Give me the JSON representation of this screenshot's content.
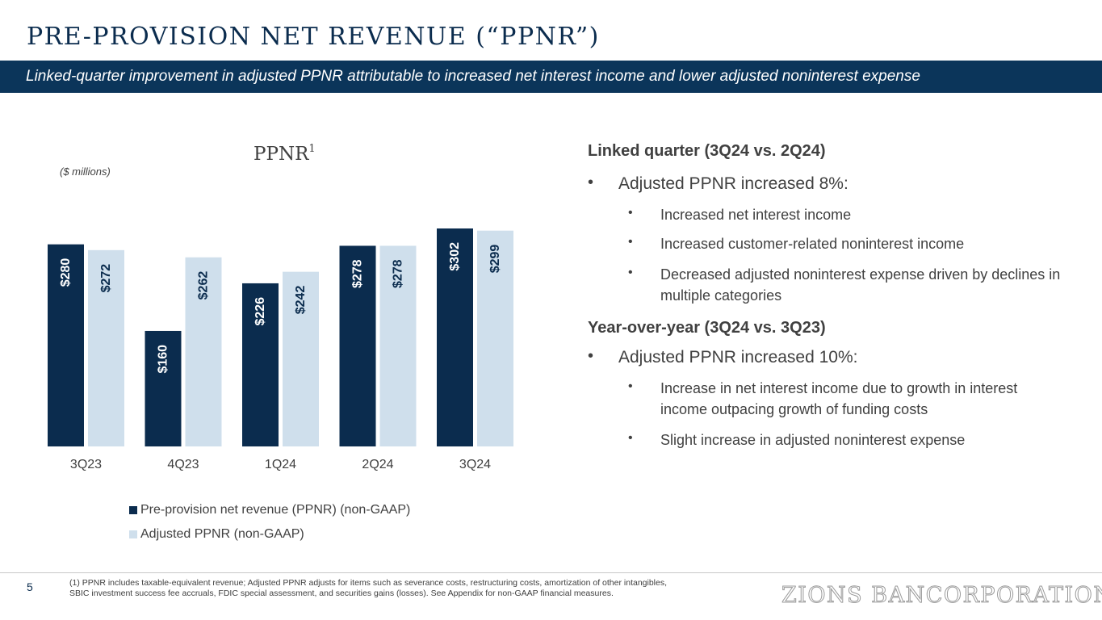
{
  "page": {
    "title": "PRE-PROVISION NET REVENUE (“PPNR”)",
    "banner": "Linked-quarter improvement in adjusted PPNR attributable to increased net interest income and lower adjusted noninterest expense",
    "page_number": "5",
    "footnote": "(1) PPNR includes taxable-equivalent revenue; Adjusted PPNR adjusts for items such as severance costs, restructuring costs, amortization of other intangibles, SBIC investment success fee accruals,  FDIC special assessment, and securities gains (losses). See Appendix for non-GAAP financial measures.",
    "logo": "ZIONS BANCORPORATION"
  },
  "colors": {
    "dark": "#0b2c4e",
    "light": "#cfdfec",
    "text": "#404040"
  },
  "chart_data": {
    "type": "bar",
    "title": "PPNR",
    "title_superscript": "1",
    "units_label": "($ millions)",
    "categories": [
      "3Q23",
      "4Q23",
      "1Q24",
      "2Q24",
      "3Q24"
    ],
    "series": [
      {
        "name": "Pre-provision net revenue (PPNR) (non-GAAP)",
        "color": "#0b2c4e",
        "values": [
          280,
          160,
          226,
          278,
          302
        ],
        "labels": [
          "$280",
          "$160",
          "$226",
          "$278",
          "$302"
        ]
      },
      {
        "name": "Adjusted PPNR (non-GAAP)",
        "color": "#cfdfec",
        "values": [
          272,
          262,
          242,
          278,
          299
        ],
        "labels": [
          "$272",
          "$262",
          "$242",
          "$278",
          "$299"
        ]
      }
    ],
    "ylim": [
      0,
      302
    ],
    "grid": false,
    "legend": "bottom"
  },
  "right_panel": {
    "linked_heading": "Linked quarter (3Q24 vs. 2Q24)",
    "linked_main": "Adjusted PPNR increased 8%:",
    "linked_sub": [
      "Increased net interest income",
      "Increased customer-related noninterest income",
      "Decreased adjusted noninterest expense driven by declines in multiple categories"
    ],
    "yoy_heading": "Year-over-year (3Q24 vs. 3Q23)",
    "yoy_main": "Adjusted PPNR increased 10%:",
    "yoy_sub": [
      "Increase in net interest income due to growth in interest income outpacing growth of funding costs",
      "Slight increase in adjusted noninterest expense"
    ],
    "bullet": "•"
  }
}
